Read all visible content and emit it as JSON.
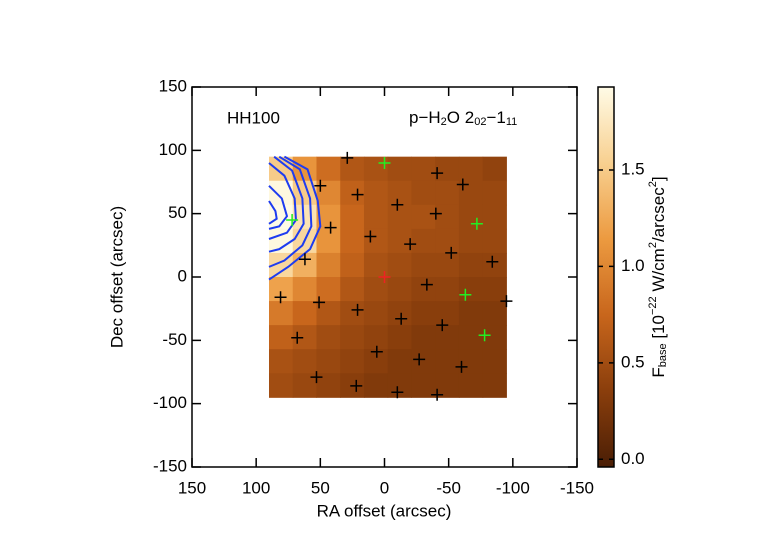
{
  "chart_data": {
    "type": "heatmap",
    "annotation_left": "HH100",
    "annotation_right": [
      {
        "text": "p−H"
      },
      {
        "text": "2",
        "shift": "sub"
      },
      {
        "text": "O 2"
      },
      {
        "text": "02",
        "shift": "sub"
      },
      {
        "text": "−1"
      },
      {
        "text": "11",
        "shift": "sub"
      }
    ],
    "xlabel": "RA offset (arcsec)",
    "ylabel": "Dec offset (arcsec)",
    "xlim": [
      150,
      -150
    ],
    "ylim": [
      -150,
      150
    ],
    "xticks": [
      150,
      100,
      50,
      0,
      -50,
      -100,
      -150
    ],
    "yticks": [
      150,
      100,
      50,
      0,
      -50,
      -100,
      -150
    ],
    "map_xlim": [
      90,
      -95
    ],
    "map_ylim": [
      95,
      -95
    ],
    "z": [
      [
        1.5,
        1.1,
        0.8,
        0.6,
        0.55,
        0.5,
        0.5,
        0.45,
        0.45,
        0.4
      ],
      [
        1.9,
        1.5,
        1.0,
        0.7,
        0.6,
        0.55,
        0.5,
        0.5,
        0.45,
        0.45
      ],
      [
        1.95,
        1.7,
        1.1,
        0.75,
        0.6,
        0.55,
        0.55,
        0.5,
        0.45,
        0.45
      ],
      [
        1.9,
        1.6,
        1.1,
        0.75,
        0.6,
        0.55,
        0.5,
        0.5,
        0.45,
        0.45
      ],
      [
        1.6,
        1.3,
        0.95,
        0.7,
        0.55,
        0.5,
        0.45,
        0.45,
        0.4,
        0.4
      ],
      [
        1.2,
        1.0,
        0.8,
        0.6,
        0.5,
        0.45,
        0.4,
        0.4,
        0.35,
        0.35
      ],
      [
        0.9,
        0.75,
        0.6,
        0.5,
        0.45,
        0.4,
        0.35,
        0.35,
        0.3,
        0.3
      ],
      [
        0.7,
        0.6,
        0.5,
        0.45,
        0.4,
        0.35,
        0.3,
        0.3,
        0.3,
        0.3
      ],
      [
        0.55,
        0.5,
        0.45,
        0.4,
        0.35,
        0.3,
        0.3,
        0.3,
        0.3,
        0.3
      ],
      [
        0.5,
        0.45,
        0.4,
        0.35,
        0.3,
        0.3,
        0.3,
        0.3,
        0.3,
        0.3
      ]
    ],
    "colormap": [
      "#4a1e05",
      "#8a3e0c",
      "#c8661c",
      "#ec9a40",
      "#f8d090",
      "#fffbe6"
    ],
    "colorbar_lim": [
      -0.04,
      1.93
    ],
    "colorbar_ticks": [
      {
        "value": 0,
        "label": "0.0"
      },
      0.5,
      {
        "value": 1,
        "label": "1.0"
      },
      1.5
    ],
    "colorbar_label": [
      {
        "text": "F"
      },
      {
        "text": "base",
        "shift": "sub"
      },
      {
        "text": " [10"
      },
      {
        "text": "−22",
        "shift": "sup"
      },
      {
        "text": " W/cm"
      },
      {
        "text": "2",
        "shift": "sup"
      },
      {
        "text": "/arcsec"
      },
      {
        "text": "2",
        "shift": "sup"
      },
      {
        "text": "]"
      }
    ],
    "contour_color": "#1e3cf0",
    "contours": [
      {
        "x": [
          78,
          60,
          52,
          50,
          58,
          75,
          90
        ],
        "y": [
          95,
          85,
          60,
          40,
          22,
          8,
          -2
        ]
      },
      {
        "x": [
          82,
          66,
          58,
          57,
          64,
          78,
          90
        ],
        "y": [
          95,
          85,
          62,
          40,
          25,
          13,
          8
        ]
      },
      {
        "x": [
          86,
          72,
          64,
          63,
          70,
          82,
          90
        ],
        "y": [
          95,
          84,
          62,
          42,
          30,
          22,
          20
        ]
      },
      {
        "x": [
          90,
          78,
          70,
          69,
          76,
          90
        ],
        "y": [
          90,
          80,
          62,
          45,
          35,
          30
        ]
      },
      {
        "x": [
          90,
          80,
          76,
          82,
          90
        ],
        "y": [
          72,
          62,
          48,
          40,
          38
        ]
      },
      {
        "x": [
          90,
          85,
          84,
          90
        ],
        "y": [
          60,
          52,
          46,
          42
        ]
      }
    ],
    "markers": [
      {
        "color": "#000000",
        "x": [
          29,
          50,
          21,
          -41,
          -61,
          -10,
          42,
          11,
          -40,
          -20,
          -52,
          62,
          -84,
          -33,
          81,
          51,
          21,
          -13,
          -45,
          -95,
          68,
          6,
          -27,
          -60,
          53,
          22,
          -10,
          -41
        ],
        "y": [
          94,
          72,
          65,
          82,
          73,
          57,
          39,
          32,
          50,
          26,
          19,
          14,
          12,
          -6,
          -16,
          -20,
          -26,
          -33,
          -38,
          -19,
          -48,
          -59,
          -65,
          -71,
          -79,
          -86,
          -91,
          -93
        ]
      },
      {
        "color": "#22ee22",
        "x": [
          0,
          72,
          -72,
          -63,
          -78
        ],
        "y": [
          90,
          45,
          42,
          -14,
          -46
        ]
      },
      {
        "color": "#ee2222",
        "x": [
          0
        ],
        "y": [
          0
        ]
      }
    ]
  }
}
